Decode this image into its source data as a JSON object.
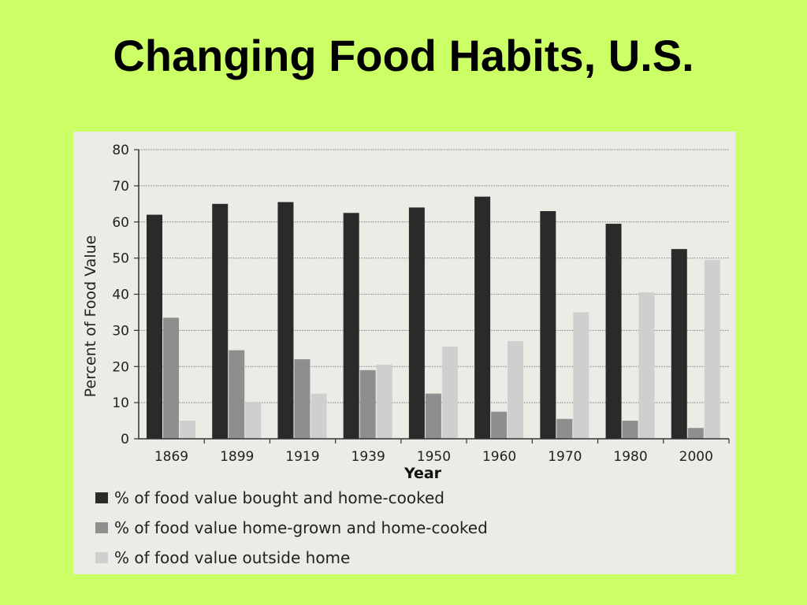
{
  "slide": {
    "title": "Changing Food Habits, U.S.",
    "background_color": "#ccff66"
  },
  "chart_data": {
    "type": "bar",
    "title": "",
    "xlabel": "Year",
    "ylabel": "Percent of Food Value",
    "ylim": [
      0,
      80
    ],
    "yticks": [
      0,
      10,
      20,
      30,
      40,
      50,
      60,
      70,
      80
    ],
    "grid": true,
    "legend_position": "bottom",
    "categories": [
      "1869",
      "1899",
      "1919",
      "1939",
      "1950",
      "1960",
      "1970",
      "1980",
      "2000"
    ],
    "series": [
      {
        "name": "% of food value bought and home-cooked",
        "color": "#2a2a2a",
        "values": [
          62,
          65,
          65.5,
          62.5,
          64,
          67,
          63,
          59.5,
          52.5
        ]
      },
      {
        "name": "% of food value home-grown and home-cooked",
        "color": "#8e8e8e",
        "values": [
          33.5,
          24.5,
          22,
          19,
          12.5,
          7.5,
          5.5,
          5,
          3
        ]
      },
      {
        "name": "% of food value outside home",
        "color": "#cfcfcf",
        "values": [
          5,
          10,
          12.5,
          20.5,
          25.5,
          27,
          35,
          40.5,
          49.5
        ]
      }
    ]
  }
}
